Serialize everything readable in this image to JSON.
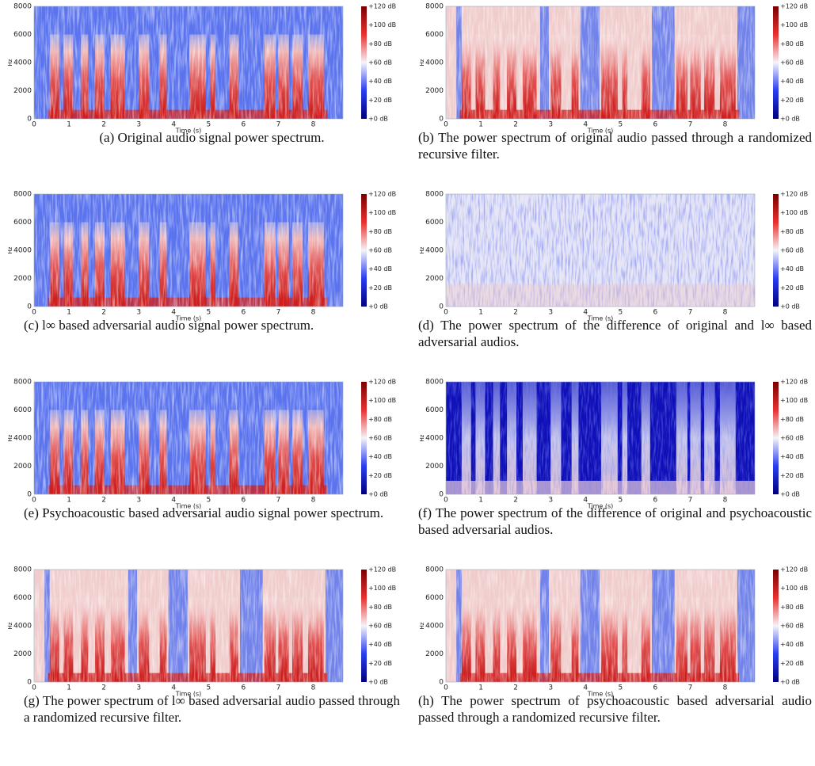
{
  "axes": {
    "y_ticks": [
      "0",
      "2000",
      "4000",
      "6000",
      "8000"
    ],
    "y_label": "Hz",
    "x_ticks": [
      "0",
      "1",
      "2",
      "3",
      "4",
      "5",
      "6",
      "7",
      "8"
    ],
    "x_label": "Time (s)",
    "colorbar_ticks": [
      "+0 dB",
      "+20 dB",
      "+40 dB",
      "+60 dB",
      "+80 dB",
      "+100 dB",
      "+120 dB"
    ]
  },
  "panels": [
    {
      "label": "(a)",
      "caption": "Original audio signal power spectrum."
    },
    {
      "label": "(b)",
      "caption": "The power spectrum of original audio passed through a randomized recursive filter."
    },
    {
      "label": "(c)",
      "caption": "l∞ based adversarial audio signal power spectrum."
    },
    {
      "label": "(d)",
      "caption": "The power spectrum of the difference of original and l∞ based adversarial audios."
    },
    {
      "label": "(e)",
      "caption": "Psychoacoustic based adversarial audio signal power spectrum."
    },
    {
      "label": "(f)",
      "caption": "The power spectrum of the difference of original and psychoacoustic based adversarial audios."
    },
    {
      "label": "(g)",
      "caption": "The power spectrum of l∞ based adversarial audio passed through a randomized recursive filter."
    },
    {
      "label": "(h)",
      "caption": "The power spectrum of psychoacoustic based adversarial audio passed through a randomized recursive filter."
    }
  ]
}
